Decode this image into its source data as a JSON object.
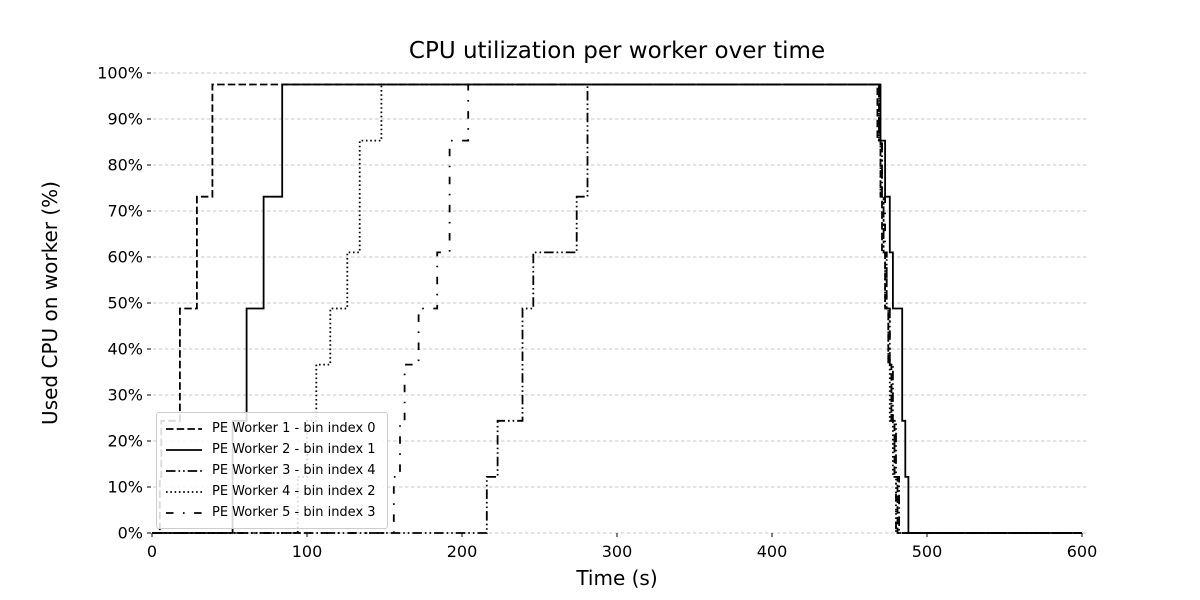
{
  "chart_data": {
    "type": "line",
    "title": "CPU utilization per worker over time",
    "xlabel": "Time (s)",
    "ylabel": "Used CPU on worker (%)",
    "xlim": [
      0,
      600
    ],
    "ylim": [
      0,
      100
    ],
    "x_ticks": [
      0,
      100,
      200,
      300,
      400,
      500,
      600
    ],
    "x_tick_labels": [
      "0",
      "100",
      "200",
      "300",
      "400",
      "500",
      "600"
    ],
    "y_ticks": [
      0,
      10,
      20,
      30,
      40,
      50,
      60,
      70,
      80,
      90,
      100
    ],
    "y_tick_labels": [
      "0%",
      "10%",
      "20%",
      "30%",
      "40%",
      "50%",
      "60%",
      "70%",
      "80%",
      "90%",
      "100%"
    ],
    "grid": "horizontal-dashed",
    "grid_color": "#c9c9c9",
    "line_color": "#000000",
    "plateau_value": 97.5,
    "legend_position": "lower-left",
    "series": [
      {
        "name": "PE Worker 1 - bin index 0",
        "style": "dashed",
        "points": [
          [
            0,
            0
          ],
          [
            5,
            0
          ],
          [
            5,
            12.2
          ],
          [
            6,
            12.2
          ],
          [
            6,
            24.4
          ],
          [
            18,
            24.4
          ],
          [
            18,
            48.8
          ],
          [
            29,
            48.8
          ],
          [
            29,
            73.1
          ],
          [
            39,
            73.1
          ],
          [
            39,
            97.5
          ],
          [
            468,
            97.5
          ],
          [
            468,
            85.3
          ],
          [
            470,
            85.3
          ],
          [
            470,
            73.1
          ],
          [
            471,
            73.1
          ],
          [
            471,
            61
          ],
          [
            473,
            61
          ],
          [
            473,
            48.8
          ],
          [
            475,
            48.8
          ],
          [
            475,
            36.6
          ],
          [
            477,
            36.6
          ],
          [
            477,
            24.4
          ],
          [
            479,
            24.4
          ],
          [
            479,
            12.2
          ],
          [
            481,
            12.2
          ],
          [
            481,
            0
          ],
          [
            600,
            0
          ]
        ]
      },
      {
        "name": "PE Worker 2 - bin index 1",
        "style": "solid",
        "points": [
          [
            0,
            0
          ],
          [
            52,
            0
          ],
          [
            52,
            24.4
          ],
          [
            61,
            24.4
          ],
          [
            61,
            48.8
          ],
          [
            72,
            48.8
          ],
          [
            72,
            73.1
          ],
          [
            84,
            73.1
          ],
          [
            84,
            97.5
          ],
          [
            470,
            97.5
          ],
          [
            470,
            85.3
          ],
          [
            473,
            85.3
          ],
          [
            473,
            73.1
          ],
          [
            476,
            73.1
          ],
          [
            476,
            61
          ],
          [
            478,
            61
          ],
          [
            478,
            48.8
          ],
          [
            484,
            48.8
          ],
          [
            484,
            24.4
          ],
          [
            486,
            24.4
          ],
          [
            486,
            12.2
          ],
          [
            488,
            12.2
          ],
          [
            488,
            0
          ],
          [
            600,
            0
          ]
        ]
      },
      {
        "name": "PE Worker 3 - bin index 4",
        "style": "dashdotdot",
        "points": [
          [
            0,
            0
          ],
          [
            216,
            0
          ],
          [
            216,
            12.2
          ],
          [
            223,
            12.2
          ],
          [
            223,
            24.4
          ],
          [
            239,
            24.4
          ],
          [
            239,
            48.8
          ],
          [
            246,
            48.8
          ],
          [
            246,
            61
          ],
          [
            274,
            61
          ],
          [
            274,
            73.1
          ],
          [
            281,
            73.1
          ],
          [
            281,
            97.5
          ],
          [
            469,
            97.5
          ],
          [
            469,
            85.3
          ],
          [
            471,
            85.3
          ],
          [
            471,
            73.1
          ],
          [
            472,
            73.1
          ],
          [
            472,
            61
          ],
          [
            474,
            61
          ],
          [
            474,
            48.8
          ],
          [
            476,
            48.8
          ],
          [
            476,
            36.6
          ],
          [
            478,
            36.6
          ],
          [
            478,
            24.4
          ],
          [
            480,
            24.4
          ],
          [
            480,
            12.2
          ],
          [
            482,
            12.2
          ],
          [
            482,
            0
          ],
          [
            600,
            0
          ]
        ]
      },
      {
        "name": "PE Worker 4 - bin index 2",
        "style": "dotted",
        "points": [
          [
            0,
            0
          ],
          [
            94,
            0
          ],
          [
            94,
            12.2
          ],
          [
            100,
            12.2
          ],
          [
            100,
            24.4
          ],
          [
            106,
            24.4
          ],
          [
            106,
            36.6
          ],
          [
            115,
            36.6
          ],
          [
            115,
            48.8
          ],
          [
            126,
            48.8
          ],
          [
            126,
            61
          ],
          [
            134,
            61
          ],
          [
            134,
            85.3
          ],
          [
            148,
            85.3
          ],
          [
            148,
            97.5
          ],
          [
            469,
            97.5
          ],
          [
            469,
            85.3
          ],
          [
            470,
            85.3
          ],
          [
            470,
            73.1
          ],
          [
            472,
            73.1
          ],
          [
            472,
            61
          ],
          [
            473,
            61
          ],
          [
            473,
            48.8
          ],
          [
            475,
            48.8
          ],
          [
            475,
            36.6
          ],
          [
            476,
            36.6
          ],
          [
            476,
            24.4
          ],
          [
            478,
            24.4
          ],
          [
            478,
            12.2
          ],
          [
            480,
            12.2
          ],
          [
            480,
            0
          ],
          [
            600,
            0
          ]
        ]
      },
      {
        "name": "PE Worker 5 - bin index 3",
        "style": "loose-dashdot",
        "points": [
          [
            0,
            0
          ],
          [
            156,
            0
          ],
          [
            156,
            12.2
          ],
          [
            160,
            12.2
          ],
          [
            160,
            24.4
          ],
          [
            163,
            24.4
          ],
          [
            163,
            36.6
          ],
          [
            172,
            36.6
          ],
          [
            172,
            48.8
          ],
          [
            184,
            48.8
          ],
          [
            184,
            61
          ],
          [
            192,
            61
          ],
          [
            192,
            85.3
          ],
          [
            204,
            85.3
          ],
          [
            204,
            97.5
          ],
          [
            469,
            97.5
          ],
          [
            469,
            85.3
          ],
          [
            471,
            85.3
          ],
          [
            471,
            73.1
          ],
          [
            473,
            73.1
          ],
          [
            473,
            61
          ],
          [
            474,
            61
          ],
          [
            474,
            48.8
          ],
          [
            476,
            48.8
          ],
          [
            476,
            36.6
          ],
          [
            477,
            36.6
          ],
          [
            477,
            24.4
          ],
          [
            479,
            24.4
          ],
          [
            479,
            12.2
          ],
          [
            480,
            12.2
          ],
          [
            480,
            0
          ],
          [
            600,
            0
          ]
        ]
      }
    ]
  }
}
